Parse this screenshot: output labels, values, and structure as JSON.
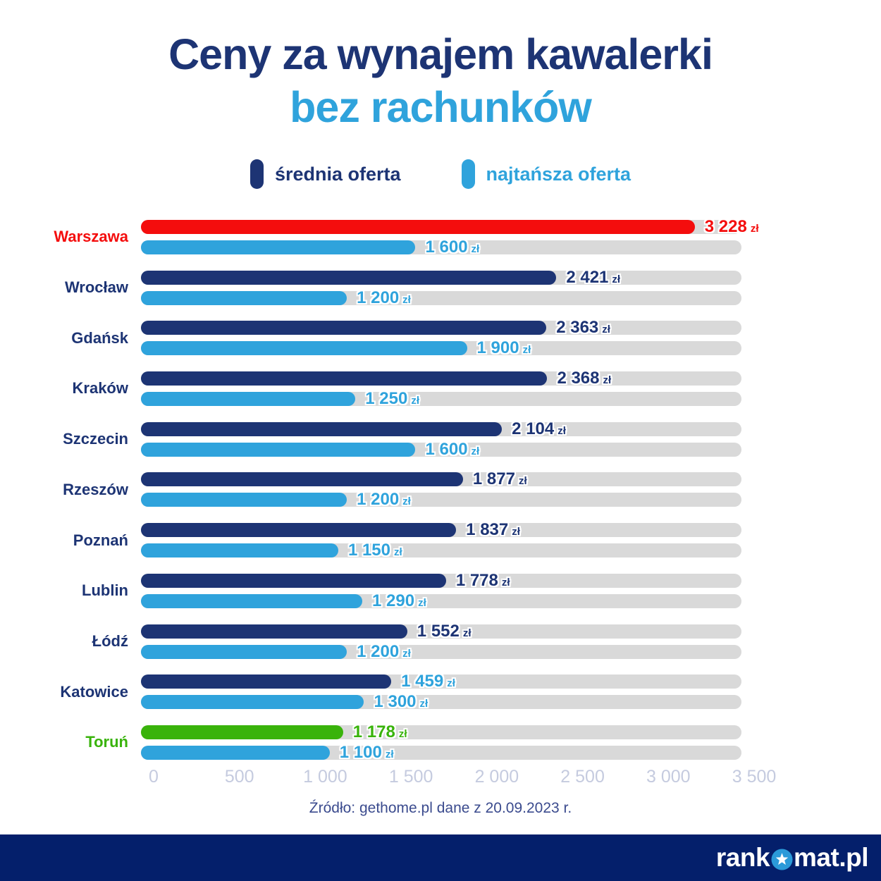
{
  "title": {
    "line1": "Ceny za wynajem kawalerki",
    "line2": "bez rachunków"
  },
  "legend": {
    "items": [
      {
        "label": "średnia oferta",
        "color": "#1d3474"
      },
      {
        "label": "najtańsza oferta",
        "color": "#2fa3dc"
      }
    ]
  },
  "colors": {
    "navy": "#1d3474",
    "light_blue": "#2fa3dc",
    "red": "#f40d0d",
    "green": "#39b30b",
    "track_gray": "#d9d9d9",
    "axis_label": "#c5cbdf",
    "footer_navy": "#041f6b"
  },
  "chart_data": {
    "type": "bar",
    "orientation": "horizontal",
    "title": "Ceny za wynajem kawalerki bez rachunków",
    "unit": "zł",
    "xlim": [
      0,
      3500
    ],
    "grid": false,
    "legend_position": "top",
    "x_ticks": [
      {
        "value": 0,
        "label": "0"
      },
      {
        "value": 500,
        "label": "500"
      },
      {
        "value": 1000,
        "label": "1 000"
      },
      {
        "value": 1500,
        "label": "1 500"
      },
      {
        "value": 2000,
        "label": "2 000"
      },
      {
        "value": 2500,
        "label": "2 500"
      },
      {
        "value": 3000,
        "label": "3 000"
      },
      {
        "value": 3500,
        "label": "3 500"
      }
    ],
    "categories": [
      "Warszawa",
      "Wrocław",
      "Gdańsk",
      "Kraków",
      "Szczecin",
      "Rzeszów",
      "Poznań",
      "Lublin",
      "Łódź",
      "Katowice",
      "Toruń"
    ],
    "series": [
      {
        "name": "średnia oferta",
        "values": [
          3228,
          2421,
          2363,
          2368,
          2104,
          1877,
          1837,
          1778,
          1552,
          1459,
          1178
        ]
      },
      {
        "name": "najtańsza oferta",
        "values": [
          1600,
          1200,
          1900,
          1250,
          1600,
          1200,
          1150,
          1290,
          1200,
          1300,
          1100
        ]
      }
    ],
    "rows": [
      {
        "city": "Warszawa",
        "city_color": "#f40d0d",
        "avg": 3228,
        "avg_label": "3 228",
        "avg_color": "#f40d0d",
        "avg_value_color": "#f40d0d",
        "cheap": 1600,
        "cheap_label": "1 600",
        "cheap_color": "#2fa3dc",
        "cheap_value_color": "#2fa3dc"
      },
      {
        "city": "Wrocław",
        "city_color": "#1d3474",
        "avg": 2421,
        "avg_label": "2 421",
        "avg_color": "#1d3474",
        "avg_value_color": "#1d3474",
        "cheap": 1200,
        "cheap_label": "1 200",
        "cheap_color": "#2fa3dc",
        "cheap_value_color": "#2fa3dc"
      },
      {
        "city": "Gdańsk",
        "city_color": "#1d3474",
        "avg": 2363,
        "avg_label": "2 363",
        "avg_color": "#1d3474",
        "avg_value_color": "#1d3474",
        "cheap": 1900,
        "cheap_label": "1 900",
        "cheap_color": "#2fa3dc",
        "cheap_value_color": "#2fa3dc"
      },
      {
        "city": "Kraków",
        "city_color": "#1d3474",
        "avg": 2368,
        "avg_label": "2 368",
        "avg_color": "#1d3474",
        "avg_value_color": "#1d3474",
        "cheap": 1250,
        "cheap_label": "1 250",
        "cheap_color": "#2fa3dc",
        "cheap_value_color": "#2fa3dc"
      },
      {
        "city": "Szczecin",
        "city_color": "#1d3474",
        "avg": 2104,
        "avg_label": "2 104",
        "avg_color": "#1d3474",
        "avg_value_color": "#1d3474",
        "cheap": 1600,
        "cheap_label": "1 600",
        "cheap_color": "#2fa3dc",
        "cheap_value_color": "#2fa3dc"
      },
      {
        "city": "Rzeszów",
        "city_color": "#1d3474",
        "avg": 1877,
        "avg_label": "1 877",
        "avg_color": "#1d3474",
        "avg_value_color": "#1d3474",
        "cheap": 1200,
        "cheap_label": "1 200",
        "cheap_color": "#2fa3dc",
        "cheap_value_color": "#2fa3dc"
      },
      {
        "city": "Poznań",
        "city_color": "#1d3474",
        "avg": 1837,
        "avg_label": "1 837",
        "avg_color": "#1d3474",
        "avg_value_color": "#1d3474",
        "cheap": 1150,
        "cheap_label": "1 150",
        "cheap_color": "#2fa3dc",
        "cheap_value_color": "#2fa3dc"
      },
      {
        "city": "Lublin",
        "city_color": "#1d3474",
        "avg": 1778,
        "avg_label": "1 778",
        "avg_color": "#1d3474",
        "avg_value_color": "#1d3474",
        "cheap": 1290,
        "cheap_label": "1 290",
        "cheap_color": "#2fa3dc",
        "cheap_value_color": "#2fa3dc"
      },
      {
        "city": "Łódź",
        "city_color": "#1d3474",
        "avg": 1552,
        "avg_label": "1 552",
        "avg_color": "#1d3474",
        "avg_value_color": "#1d3474",
        "cheap": 1200,
        "cheap_label": "1 200",
        "cheap_color": "#2fa3dc",
        "cheap_value_color": "#2fa3dc"
      },
      {
        "city": "Katowice",
        "city_color": "#1d3474",
        "avg": 1459,
        "avg_label": "1 459",
        "avg_color": "#1d3474",
        "avg_value_color": "#2fa3dc",
        "cheap": 1300,
        "cheap_label": "1 300",
        "cheap_color": "#2fa3dc",
        "cheap_value_color": "#2fa3dc"
      },
      {
        "city": "Toruń",
        "city_color": "#39b30b",
        "avg": 1178,
        "avg_label": "1 178",
        "avg_color": "#39b30b",
        "avg_value_color": "#39b30b",
        "cheap": 1100,
        "cheap_label": "1 100",
        "cheap_color": "#2fa3dc",
        "cheap_value_color": "#2fa3dc"
      }
    ]
  },
  "source": {
    "text": "Źródło: gethome.pl dane z 20.09.2023 r."
  },
  "footer": {
    "logo_prefix": "rank",
    "logo_suffix": "mat.pl",
    "logo_star_icon": "star-in-circle",
    "logo_star_color": "#2b9ad9"
  }
}
